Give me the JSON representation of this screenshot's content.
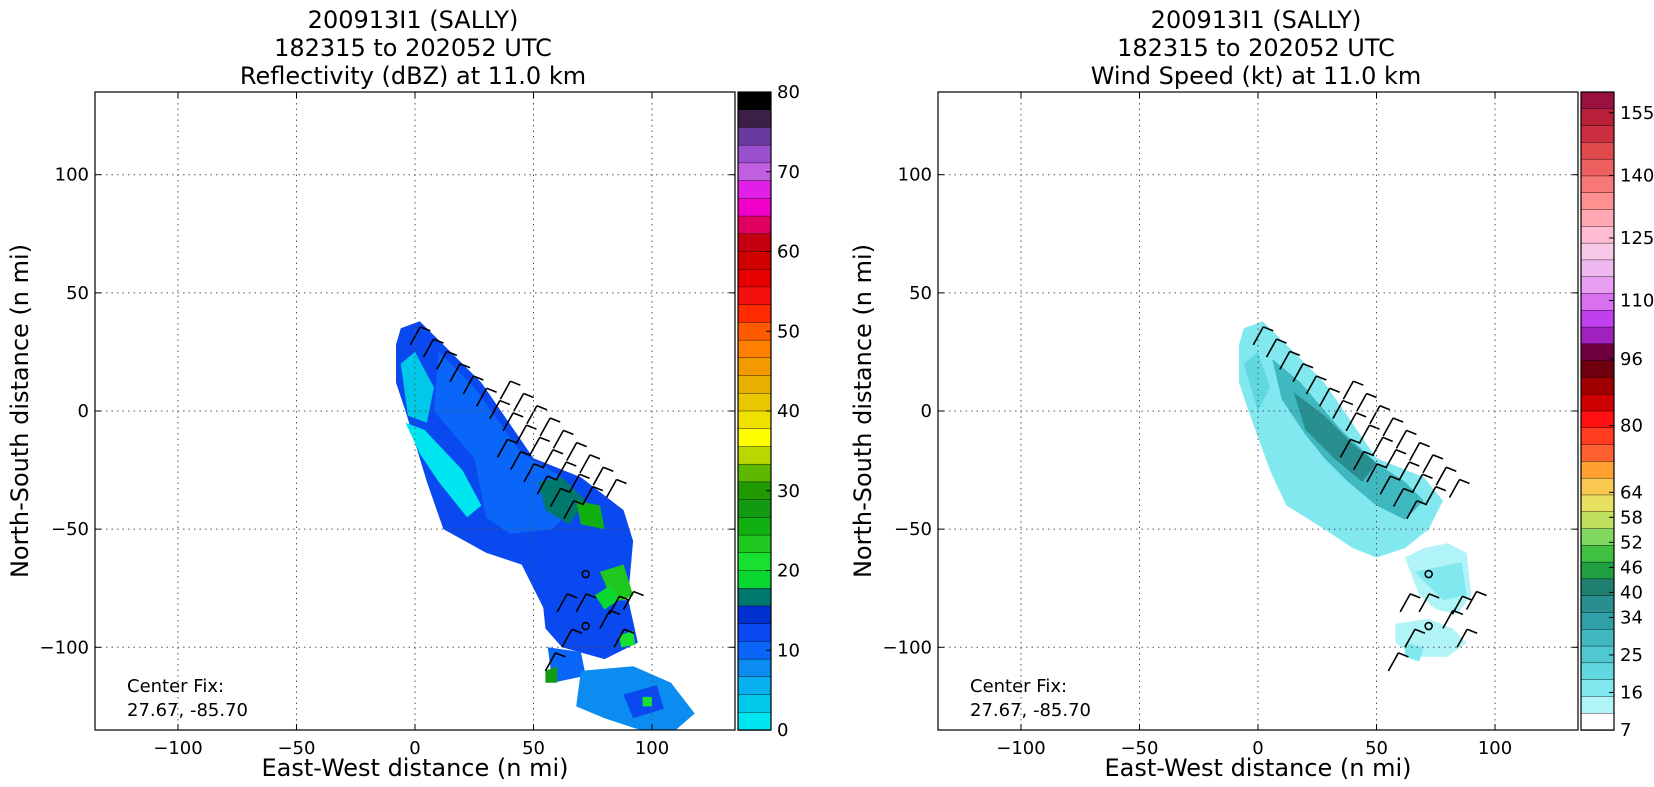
{
  "figure": {
    "panels": [
      {
        "title_lines": [
          "200913I1 (SALLY)",
          "182315 to 202052 UTC",
          "Reflectivity (dBZ) at 11.0 km"
        ],
        "colorbar_labels": [
          "80",
          "70",
          "60",
          "50",
          "40",
          "30",
          "20",
          "10",
          "0"
        ],
        "colorbar_colors": [
          "#000000",
          "#3b1f47",
          "#6b3aa0",
          "#9a4fcf",
          "#c05fe0",
          "#e020e8",
          "#f000c8",
          "#e00060",
          "#c40010",
          "#d00000",
          "#e60000",
          "#f51010",
          "#ff2a00",
          "#ff5a00",
          "#ff8000",
          "#f39a00",
          "#eab000",
          "#e8c800",
          "#f0e000",
          "#fffe00",
          "#b8d800",
          "#5fb800",
          "#1f9a00",
          "#129a12",
          "#10b010",
          "#1ec81e",
          "#18e030",
          "#0ad830",
          "#00786e",
          "#0030d0",
          "#0a48f0",
          "#0a66f8",
          "#0a8cf0",
          "#08b0f0",
          "#00c8e8",
          "#00e6f0"
        ],
        "note_lines": [
          "Center Fix:",
          "27.67, -85.70"
        ]
      },
      {
        "title_lines": [
          "200913I1 (SALLY)",
          "182315 to 202052 UTC",
          "Wind Speed (kt) at 11.0 km"
        ],
        "colorbar_labels": [
          "155",
          "140",
          "125",
          "110",
          "96",
          "80",
          "64",
          "58",
          "52",
          "46",
          "40",
          "34",
          "25",
          "16",
          "7"
        ],
        "colorbar_colors": [
          "#9a1040",
          "#b8203a",
          "#cc3040",
          "#e04a4a",
          "#ee6060",
          "#f87878",
          "#ff9090",
          "#ffa8b4",
          "#ffbcd0",
          "#f8c8e8",
          "#f0b8f0",
          "#e59ef0",
          "#d870f0",
          "#c040f0",
          "#a020c0",
          "#700040",
          "#700010",
          "#a00000",
          "#cc0000",
          "#ff1010",
          "#ff3c20",
          "#ff6030",
          "#ffa030",
          "#f8c850",
          "#e8e060",
          "#c0e060",
          "#80d860",
          "#40c040",
          "#20a040",
          "#208070",
          "#288e90",
          "#30a0a8",
          "#40b8c0",
          "#50c8d0",
          "#60d8e0",
          "#80e8ee",
          "#b0f4f8",
          "#ffffff"
        ],
        "note_lines": [
          "Center Fix:",
          "27.67, -85.70"
        ]
      }
    ],
    "xlabel": "East-West distance (n mi)",
    "ylabel": "North-South distance (n mi)",
    "xticks": [
      "−100",
      "−50",
      "0",
      "50",
      "100"
    ],
    "yticks": [
      "100",
      "50",
      "0",
      "−50",
      "−100"
    ]
  },
  "chart_data": [
    {
      "type": "heatmap",
      "title": "200913I1 (SALLY) 182315 to 202052 UTC Reflectivity (dBZ) at 11.0 km",
      "xlabel": "East-West distance (n mi)",
      "ylabel": "North-South distance (n mi)",
      "xlim": [
        -135,
        135
      ],
      "ylim": [
        -135,
        135
      ],
      "xticks": [
        -100,
        -50,
        0,
        50,
        100
      ],
      "yticks": [
        -100,
        -50,
        0,
        50,
        100
      ],
      "grid": true,
      "colorbar": {
        "min": 0,
        "max": 80,
        "ticks": [
          0,
          10,
          20,
          30,
          40,
          50,
          60,
          70,
          80
        ],
        "unit": "dBZ"
      },
      "center_fix": {
        "lat": 27.67,
        "lon": -85.7
      },
      "data_extent": {
        "x": [
          -8,
          125
        ],
        "y": [
          -135,
          38
        ]
      },
      "value_range_observed": [
        0,
        28
      ],
      "wind_barbs_present": true,
      "center_markers": [
        [
          72,
          -69
        ],
        [
          72,
          -91
        ]
      ]
    },
    {
      "type": "heatmap",
      "title": "200913I1 (SALLY) 182315 to 202052 UTC Wind Speed (kt) at 11.0 km",
      "xlabel": "East-West distance (n mi)",
      "ylabel": "North-South distance (n mi)",
      "xlim": [
        -135,
        135
      ],
      "ylim": [
        -135,
        135
      ],
      "xticks": [
        -100,
        -50,
        0,
        50,
        100
      ],
      "yticks": [
        -100,
        -50,
        0,
        50,
        100
      ],
      "grid": true,
      "colorbar": {
        "min": 7,
        "max": 160,
        "ticks": [
          7,
          16,
          25,
          34,
          40,
          46,
          52,
          58,
          64,
          80,
          96,
          110,
          125,
          140,
          155
        ],
        "unit": "kt"
      },
      "center_fix": {
        "lat": 27.67,
        "lon": -85.7
      },
      "data_extent": {
        "x": [
          -8,
          90
        ],
        "y": [
          -113,
          38
        ]
      },
      "value_range_observed": [
        7,
        30
      ],
      "wind_barbs_present": true,
      "center_markers": [
        [
          72,
          -69
        ],
        [
          72,
          -91
        ]
      ]
    }
  ]
}
